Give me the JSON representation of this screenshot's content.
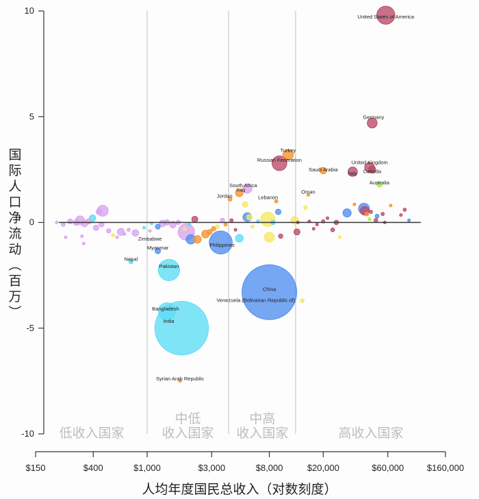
{
  "chart_data": {
    "type": "scatter",
    "subtype": "bubble",
    "title": "",
    "xlabel": "人均年度国民总收入（对数刻度）",
    "ylabel": "国际人口净流动（百万）",
    "x_scale": "log",
    "xlim": [
      150,
      160000
    ],
    "ylim": [
      -10,
      10
    ],
    "x_ticks": [
      {
        "value": 150,
        "label": "$150"
      },
      {
        "value": 400,
        "label": "$400"
      },
      {
        "value": 1000,
        "label": "$1,000"
      },
      {
        "value": 3000,
        "label": "$3,000"
      },
      {
        "value": 8000,
        "label": "$8,000"
      },
      {
        "value": 20000,
        "label": "$20,000"
      },
      {
        "value": 60000,
        "label": "$60,000"
      },
      {
        "value": 160000,
        "label": "$160,000"
      }
    ],
    "y_ticks": [
      {
        "value": 10,
        "label": "10"
      },
      {
        "value": 5,
        "label": "5"
      },
      {
        "value": 0,
        "label": "0"
      },
      {
        "value": -5,
        "label": "-5"
      },
      {
        "value": -10,
        "label": "-10"
      }
    ],
    "grid": false,
    "reference_line_y": 0,
    "income_band_boundaries": [
      1000,
      4000,
      12500
    ],
    "income_bands": [
      {
        "lines": [
          "低收入国家"
        ],
        "center": 390
      },
      {
        "lines": [
          "中低",
          "收入国家"
        ],
        "center": 2000
      },
      {
        "lines": [
          "中高",
          "收入国家"
        ],
        "center": 7100
      },
      {
        "lines": [
          "高收入国家"
        ],
        "center": 45000
      }
    ],
    "colors": {
      "sub_saharan_africa": "#d9a3f0",
      "south_asia": "#5cdcf5",
      "east_asia_pacific": "#4f8ef0",
      "middle_east_north_africa": "#f5922a",
      "europe_central_asia": "#b84a68",
      "latin_america": "#f5e860",
      "north_america": "#b84a68",
      "other_high": "#a8e84a"
    },
    "labeled_points": [
      {
        "name": "United States of America",
        "x": 58000,
        "y": 9.8,
        "size": 0.33,
        "color": "#b84a68"
      },
      {
        "name": "Germany",
        "x": 46000,
        "y": 4.7,
        "size": 0.18,
        "color": "#b84a68"
      },
      {
        "name": "Turkey",
        "x": 11000,
        "y": 3.2,
        "size": 0.19,
        "color": "#f5922a"
      },
      {
        "name": "Russian Federation",
        "x": 9500,
        "y": 2.8,
        "size": 0.27,
        "color": "#b84a68"
      },
      {
        "name": "United Kingdom",
        "x": 44000,
        "y": 2.6,
        "size": 0.18,
        "color": "#b84a68"
      },
      {
        "name": "Canada",
        "x": 46000,
        "y": 2.5,
        "size": 0.13,
        "color": "#b84a68"
      },
      {
        "name": "Italy",
        "x": 33000,
        "y": 2.4,
        "size": 0.17,
        "color": "#b84a68"
      },
      {
        "name": "Saudi Arabia",
        "x": 20000,
        "y": 2.45,
        "size": 0.12,
        "color": "#f5922a"
      },
      {
        "name": "Australia",
        "x": 52000,
        "y": 1.8,
        "size": 0.1,
        "color": "#a8e84a"
      },
      {
        "name": "South Africa",
        "x": 5500,
        "y": 1.6,
        "size": 0.17,
        "color": "#d9a3f0"
      },
      {
        "name": "Iraq",
        "x": 4800,
        "y": 1.4,
        "size": 0.14,
        "color": "#f5922a"
      },
      {
        "name": "Jordan",
        "x": 4100,
        "y": 1.1,
        "size": 0.07,
        "color": "#f5922a"
      },
      {
        "name": "Oman",
        "x": 15500,
        "y": 1.3,
        "size": 0.05,
        "color": "#f5922a"
      },
      {
        "name": "Lebanon",
        "x": 9000,
        "y": 1.0,
        "size": 0.06,
        "color": "#f5922a"
      },
      {
        "name": "Zimbabwe",
        "x": 1050,
        "y": -0.4,
        "size": 0.05,
        "color": "#d9a3f0"
      },
      {
        "name": "Myanmar",
        "x": 1200,
        "y": -1.35,
        "size": 0.1,
        "color": "#4f8ef0"
      },
      {
        "name": "Nepal",
        "x": 760,
        "y": -1.85,
        "size": 0.08,
        "color": "#5cdcf5"
      },
      {
        "name": "Philippines",
        "x": 3500,
        "y": -0.95,
        "size": 0.42,
        "color": "#4f8ef0"
      },
      {
        "name": "Pakistan",
        "x": 1450,
        "y": -2.25,
        "size": 0.39,
        "color": "#5cdcf5"
      },
      {
        "name": "China",
        "x": 8000,
        "y": -3.3,
        "size": 1.0,
        "color": "#4f8ef0"
      },
      {
        "name": "Venezuela (Bolivarian Republic of)",
        "x": 14000,
        "y": -3.7,
        "size": 0.07,
        "color": "#f5e860"
      },
      {
        "name": "Bangladesh",
        "x": 1400,
        "y": -4.2,
        "size": 0.31,
        "color": "#5cdcf5"
      },
      {
        "name": "India",
        "x": 1800,
        "y": -5.0,
        "size": 0.98,
        "color": "#5cdcf5"
      },
      {
        "name": "Syrian Arab Republic",
        "x": 1750,
        "y": -7.5,
        "size": 0.05,
        "color": "#f5922a"
      }
    ],
    "unlabeled_points": [
      {
        "x": 215,
        "y": 0.0,
        "size": 0.05,
        "color": "#d9a3f0"
      },
      {
        "x": 240,
        "y": -0.1,
        "size": 0.07,
        "color": "#d9a3f0"
      },
      {
        "x": 270,
        "y": 0.05,
        "size": 0.09,
        "color": "#d9a3f0"
      },
      {
        "x": 300,
        "y": 0.0,
        "size": 0.11,
        "color": "#d9a3f0"
      },
      {
        "x": 320,
        "y": 0.1,
        "size": 0.16,
        "color": "#d9a3f0"
      },
      {
        "x": 345,
        "y": -0.05,
        "size": 0.12,
        "color": "#d9a3f0"
      },
      {
        "x": 370,
        "y": 0.05,
        "size": 0.1,
        "color": "#d9a3f0"
      },
      {
        "x": 395,
        "y": 0.2,
        "size": 0.12,
        "color": "#5cdcf5"
      },
      {
        "x": 420,
        "y": -0.25,
        "size": 0.1,
        "color": "#d9a3f0"
      },
      {
        "x": 440,
        "y": 0.5,
        "size": 0.1,
        "color": "#d9a3f0"
      },
      {
        "x": 470,
        "y": 0.55,
        "size": 0.2,
        "color": "#d9a3f0"
      },
      {
        "x": 460,
        "y": -0.1,
        "size": 0.09,
        "color": "#d9a3f0"
      },
      {
        "x": 520,
        "y": -0.4,
        "size": 0.08,
        "color": "#d9a3f0"
      },
      {
        "x": 560,
        "y": -0.6,
        "size": 0.06,
        "color": "#f5e860"
      },
      {
        "x": 600,
        "y": -0.7,
        "size": 0.05,
        "color": "#d9a3f0"
      },
      {
        "x": 640,
        "y": -0.45,
        "size": 0.13,
        "color": "#d9a3f0"
      },
      {
        "x": 340,
        "y": -1.0,
        "size": 0.04,
        "color": "#d9a3f0"
      },
      {
        "x": 330,
        "y": -0.65,
        "size": 0.05,
        "color": "#d9a3f0"
      },
      {
        "x": 250,
        "y": -0.7,
        "size": 0.04,
        "color": "#d9a3f0"
      },
      {
        "x": 680,
        "y": -0.55,
        "size": 0.05,
        "color": "#d9a3f0"
      },
      {
        "x": 730,
        "y": -0.35,
        "size": 0.06,
        "color": "#d9a3f0"
      },
      {
        "x": 820,
        "y": -0.5,
        "size": 0.12,
        "color": "#d9a3f0"
      },
      {
        "x": 950,
        "y": -0.25,
        "size": 0.05,
        "color": "#5cdcf5"
      },
      {
        "x": 1080,
        "y": -0.05,
        "size": 0.04,
        "color": "#5cdcf5"
      },
      {
        "x": 1200,
        "y": -0.2,
        "size": 0.09,
        "color": "#4f8ef0"
      },
      {
        "x": 1300,
        "y": -0.05,
        "size": 0.12,
        "color": "#d9a3f0"
      },
      {
        "x": 1400,
        "y": 0.0,
        "size": 0.1,
        "color": "#d9a3f0"
      },
      {
        "x": 1550,
        "y": -0.1,
        "size": 0.12,
        "color": "#d9a3f0"
      },
      {
        "x": 1700,
        "y": 0.0,
        "size": 0.08,
        "color": "#d9a3f0"
      },
      {
        "x": 1950,
        "y": -0.45,
        "size": 0.3,
        "color": "#d9a3f0"
      },
      {
        "x": 2250,
        "y": 0.15,
        "size": 0.11,
        "color": "#b84a68"
      },
      {
        "x": 2100,
        "y": -0.8,
        "size": 0.17,
        "color": "#4f8ef0"
      },
      {
        "x": 2350,
        "y": -0.8,
        "size": 0.14,
        "color": "#f5922a"
      },
      {
        "x": 1900,
        "y": -0.3,
        "size": 0.06,
        "color": "#f5e860"
      },
      {
        "x": 2050,
        "y": -0.1,
        "size": 0.04,
        "color": "#5cdcf5"
      },
      {
        "x": 2700,
        "y": -0.55,
        "size": 0.14,
        "color": "#f5922a"
      },
      {
        "x": 2900,
        "y": -0.45,
        "size": 0.09,
        "color": "#f5922a"
      },
      {
        "x": 3100,
        "y": -0.3,
        "size": 0.08,
        "color": "#f5922a"
      },
      {
        "x": 3300,
        "y": -0.2,
        "size": 0.07,
        "color": "#f5e860"
      },
      {
        "x": 3600,
        "y": 0.1,
        "size": 0.08,
        "color": "#d9a3f0"
      },
      {
        "x": 3800,
        "y": -0.1,
        "size": 0.06,
        "color": "#f5922a"
      },
      {
        "x": 4200,
        "y": 0.1,
        "size": 0.06,
        "color": "#b84a68"
      },
      {
        "x": 4500,
        "y": -0.35,
        "size": 0.04,
        "color": "#b84a68"
      },
      {
        "x": 4800,
        "y": -0.75,
        "size": 0.14,
        "color": "#5cdcf5"
      },
      {
        "x": 5300,
        "y": 0.85,
        "size": 0.1,
        "color": "#f5e860"
      },
      {
        "x": 5500,
        "y": 0.25,
        "size": 0.16,
        "color": "#4f8ef0"
      },
      {
        "x": 5700,
        "y": 0.25,
        "size": 0.1,
        "color": "#f5e860"
      },
      {
        "x": 6000,
        "y": -0.2,
        "size": 0.06,
        "color": "#f5e860"
      },
      {
        "x": 6600,
        "y": 0.05,
        "size": 0.06,
        "color": "#5cdcf5"
      },
      {
        "x": 7800,
        "y": 0.15,
        "size": 0.26,
        "color": "#f5e860"
      },
      {
        "x": 8000,
        "y": -0.7,
        "size": 0.18,
        "color": "#f5e860"
      },
      {
        "x": 8500,
        "y": 0.0,
        "size": 0.08,
        "color": "#5cdcf5"
      },
      {
        "x": 9300,
        "y": 0.5,
        "size": 0.1,
        "color": "#4f8ef0"
      },
      {
        "x": 9700,
        "y": -0.65,
        "size": 0.08,
        "color": "#b84a68"
      },
      {
        "x": 12300,
        "y": 0.1,
        "size": 0.14,
        "color": "#f5e860"
      },
      {
        "x": 12800,
        "y": -0.45,
        "size": 0.11,
        "color": "#b84a68"
      },
      {
        "x": 13000,
        "y": 0.0,
        "size": 0.05,
        "color": "#b84a68"
      },
      {
        "x": 14800,
        "y": 0.7,
        "size": 0.07,
        "color": "#f5e860"
      },
      {
        "x": 15800,
        "y": 0.05,
        "size": 0.04,
        "color": "#b84a68"
      },
      {
        "x": 17000,
        "y": -0.3,
        "size": 0.05,
        "color": "#b84a68"
      },
      {
        "x": 18000,
        "y": -0.1,
        "size": 0.04,
        "color": "#b84a68"
      },
      {
        "x": 20000,
        "y": 0.05,
        "size": 0.06,
        "color": "#b84a68"
      },
      {
        "x": 21500,
        "y": 0.2,
        "size": 0.04,
        "color": "#b84a68"
      },
      {
        "x": 23500,
        "y": -0.35,
        "size": 0.07,
        "color": "#b84a68"
      },
      {
        "x": 25000,
        "y": 0.0,
        "size": 0.08,
        "color": "#b84a68"
      },
      {
        "x": 26500,
        "y": -0.7,
        "size": 0.04,
        "color": "#f5e860"
      },
      {
        "x": 30000,
        "y": 0.45,
        "size": 0.15,
        "color": "#4f8ef0"
      },
      {
        "x": 34000,
        "y": 0.85,
        "size": 0.04,
        "color": "#f5922a"
      },
      {
        "x": 40000,
        "y": 0.65,
        "size": 0.2,
        "color": "#4f8ef0"
      },
      {
        "x": 40500,
        "y": 0.55,
        "size": 0.16,
        "color": "#b84a68"
      },
      {
        "x": 42000,
        "y": 0.4,
        "size": 0.07,
        "color": "#f5922a"
      },
      {
        "x": 44000,
        "y": 0.15,
        "size": 0.05,
        "color": "#a8e84a"
      },
      {
        "x": 45000,
        "y": 0.5,
        "size": 0.06,
        "color": "#b84a68"
      },
      {
        "x": 49000,
        "y": 0.1,
        "size": 0.07,
        "color": "#b84a68"
      },
      {
        "x": 50000,
        "y": 0.3,
        "size": 0.07,
        "color": "#4f8ef0"
      },
      {
        "x": 55000,
        "y": 0.4,
        "size": 0.06,
        "color": "#b84a68"
      },
      {
        "x": 57000,
        "y": 0.0,
        "size": 0.05,
        "color": "#b84a68"
      },
      {
        "x": 63000,
        "y": 0.8,
        "size": 0.04,
        "color": "#f5922a"
      },
      {
        "x": 75000,
        "y": 0.35,
        "size": 0.05,
        "color": "#b84a68"
      },
      {
        "x": 80000,
        "y": 0.6,
        "size": 0.06,
        "color": "#b84a68"
      },
      {
        "x": 86000,
        "y": 0.1,
        "size": 0.03,
        "color": "#4f8ef0"
      }
    ]
  }
}
